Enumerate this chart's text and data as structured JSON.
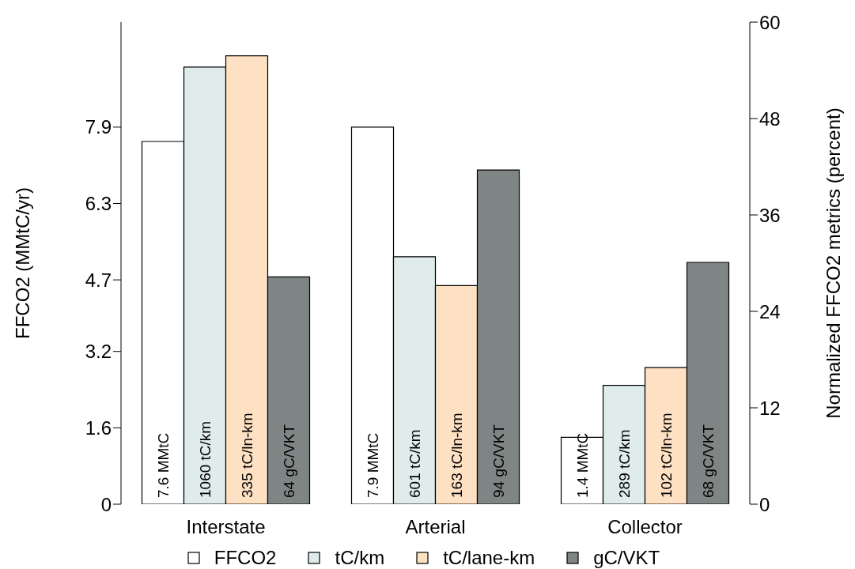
{
  "chart_data": {
    "type": "bar",
    "categories": [
      "Interstate",
      "Arterial",
      "Collector"
    ],
    "ylabel": "FFCO2 (MMtC/yr)",
    "y2label": "Normalized FFCO2 metrics (percent)",
    "ylim": [
      0,
      10.1
    ],
    "yticks": [
      0,
      1.6,
      3.2,
      4.7,
      6.3,
      7.9
    ],
    "y2lim": [
      0,
      60
    ],
    "y2ticks": [
      0,
      12,
      24,
      36,
      48,
      60
    ],
    "series": [
      {
        "name": "FFCO2",
        "color": "#ffffff",
        "values": [
          7.6,
          7.9,
          1.4
        ],
        "value_labels": [
          "7.6 MMtC",
          "7.9 MMtC",
          "1.4 MMtC"
        ]
      },
      {
        "name": "tC/km",
        "color": "#dfeceb",
        "axis": "y2",
        "values": [
          54.4,
          30.8,
          14.8
        ]
      },
      {
        "name": "tC/lane-km",
        "color": "#fde1c2",
        "axis": "y2",
        "values": [
          55.8,
          27.2,
          17.0
        ]
      },
      {
        "name": "gC/VKT",
        "color": "#7f8584",
        "axis": "y2",
        "values": [
          28.3,
          41.6,
          30.1
        ]
      }
    ],
    "annotations": [
      "1060 tC/km",
      "601 tC/km",
      "289 tC/km",
      "335 tC/ln-km",
      "163 tC/ln-km",
      "102 tC/ln-km",
      "64 gC/VKT",
      "94 gC/VKT",
      "68 gC/VKT"
    ],
    "legend": "bottom",
    "grid": false
  }
}
